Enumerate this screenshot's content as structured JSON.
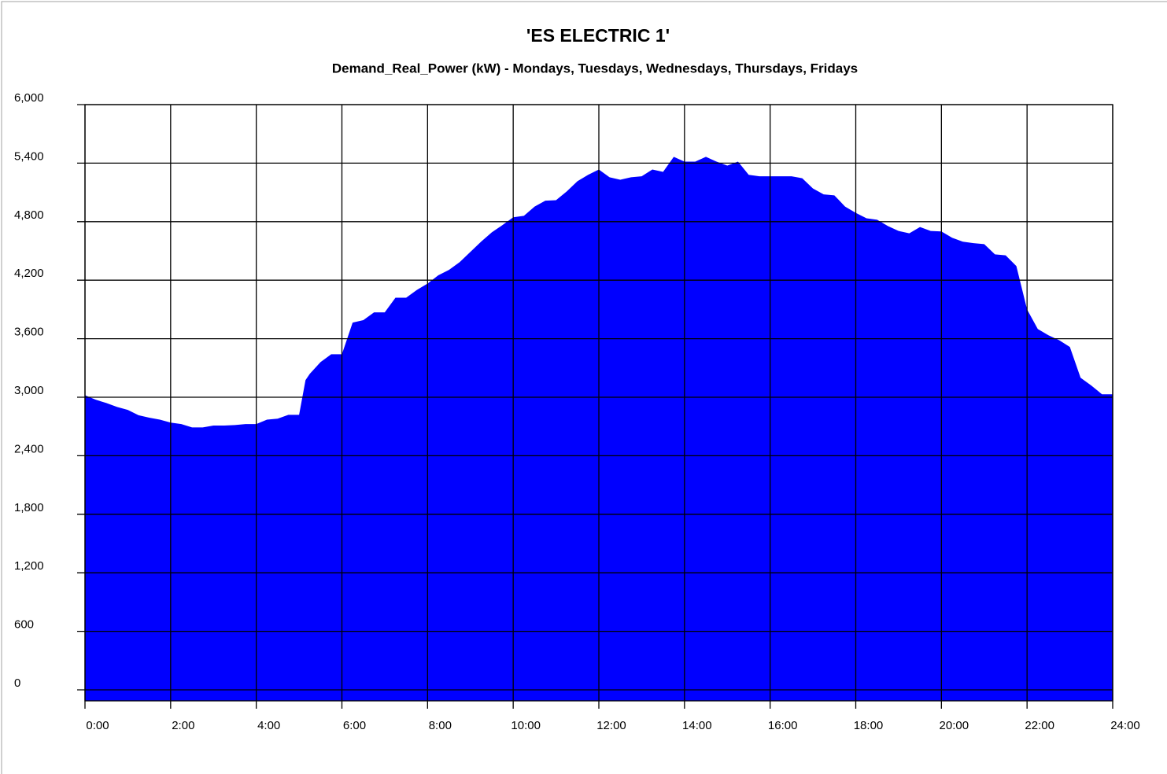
{
  "chart_data": {
    "type": "area",
    "title": "'ES ELECTRIC 1'",
    "subtitle": "Demand_Real_Power (kW) -  Mondays, Tuesdays, Wednesdays, Thursdays, Fridays",
    "color": "#0000ff",
    "grid": true,
    "xlim": [
      0,
      24
    ],
    "ylim": [
      -113,
      6000
    ],
    "xticks": [
      {
        "value": 0,
        "label": "0:00"
      },
      {
        "value": 2,
        "label": "2:00"
      },
      {
        "value": 4,
        "label": "4:00"
      },
      {
        "value": 6,
        "label": "6:00"
      },
      {
        "value": 8,
        "label": "8:00"
      },
      {
        "value": 10,
        "label": "10:00"
      },
      {
        "value": 12,
        "label": "12:00"
      },
      {
        "value": 14,
        "label": "14:00"
      },
      {
        "value": 16,
        "label": "16:00"
      },
      {
        "value": 18,
        "label": "18:00"
      },
      {
        "value": 20,
        "label": "20:00"
      },
      {
        "value": 22,
        "label": "22:00"
      },
      {
        "value": 24,
        "label": "24:00"
      }
    ],
    "yticks": [
      0,
      600,
      {
        "value": 1200,
        "label": "1,200"
      },
      {
        "value": 1800,
        "label": "1,800"
      },
      {
        "value": 2400,
        "label": "2,400"
      },
      {
        "value": 3000,
        "label": "3,000"
      },
      {
        "value": 3600,
        "label": "3,600"
      },
      {
        "value": 4200,
        "label": "4,200"
      },
      {
        "value": 4800,
        "label": "4,800"
      },
      {
        "value": 5400,
        "label": "5,400"
      },
      {
        "value": 6000,
        "label": "6,000"
      }
    ],
    "x": [
      0,
      0.25,
      0.5,
      0.75,
      1,
      1.25,
      1.5,
      1.75,
      2,
      2.25,
      2.5,
      2.75,
      3,
      3.25,
      3.5,
      3.75,
      4,
      4.25,
      4.5,
      4.75,
      5,
      5.15,
      5.25,
      5.5,
      5.75,
      6,
      6.25,
      6.5,
      6.75,
      7,
      7.25,
      7.5,
      7.75,
      8,
      8.25,
      8.5,
      8.75,
      9,
      9.25,
      9.5,
      9.75,
      10,
      10.25,
      10.5,
      10.75,
      11,
      11.25,
      11.5,
      11.75,
      12,
      12.25,
      12.5,
      12.75,
      13,
      13.25,
      13.5,
      13.75,
      14,
      14.25,
      14.5,
      14.75,
      15,
      15.25,
      15.5,
      15.75,
      16,
      16.5,
      16.75,
      17,
      17.25,
      17.5,
      17.75,
      18,
      18.25,
      18.5,
      18.75,
      19,
      19.25,
      19.5,
      19.75,
      20,
      20.25,
      20.5,
      20.75,
      21,
      21.25,
      21.5,
      21.75,
      22,
      22.25,
      22.5,
      22.75,
      23,
      23.25,
      23.5,
      23.75,
      24
    ],
    "values": [
      3020,
      2975,
      2940,
      2900,
      2870,
      2815,
      2790,
      2770,
      2740,
      2725,
      2690,
      2690,
      2710,
      2710,
      2715,
      2725,
      2725,
      2770,
      2780,
      2820,
      2820,
      3175,
      3240,
      3360,
      3440,
      3440,
      3765,
      3790,
      3870,
      3870,
      4020,
      4020,
      4100,
      4165,
      4250,
      4305,
      4385,
      4490,
      4595,
      4690,
      4765,
      4845,
      4860,
      4955,
      5015,
      5020,
      5110,
      5215,
      5280,
      5335,
      5255,
      5230,
      5255,
      5265,
      5335,
      5310,
      5465,
      5415,
      5415,
      5465,
      5415,
      5375,
      5415,
      5280,
      5265,
      5265,
      5265,
      5245,
      5140,
      5080,
      5070,
      4955,
      4890,
      4835,
      4820,
      4755,
      4705,
      4680,
      4745,
      4705,
      4700,
      4635,
      4595,
      4580,
      4570,
      4465,
      4455,
      4345,
      3900,
      3700,
      3635,
      3585,
      3515,
      3200,
      3120,
      3030,
      3030
    ]
  }
}
